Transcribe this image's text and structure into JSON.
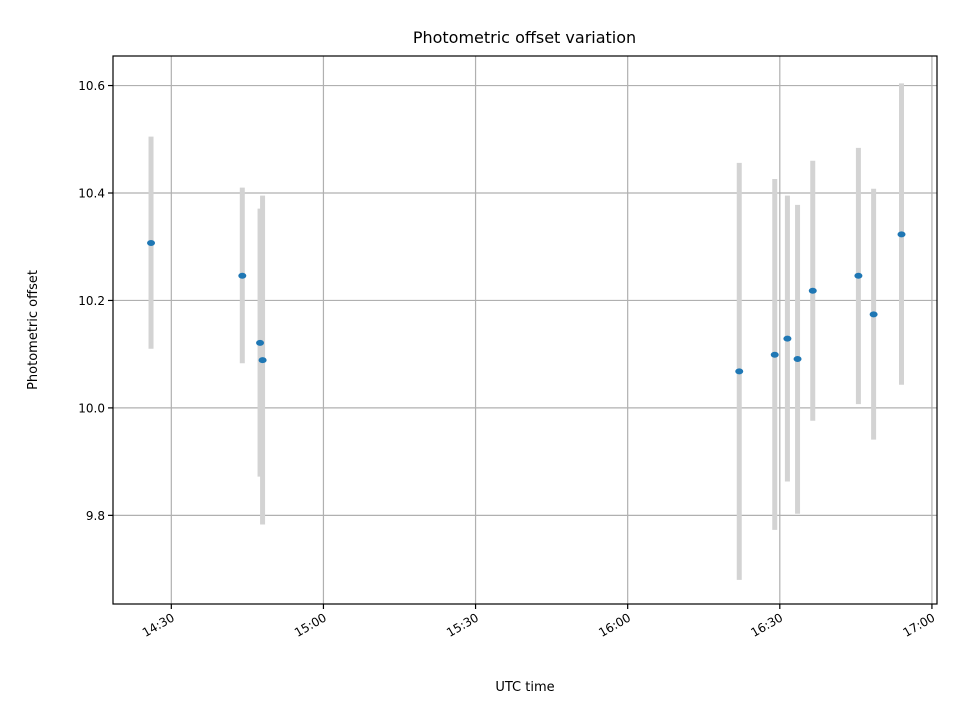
{
  "chart_data": {
    "type": "scatter",
    "title": "Photometric offset variation",
    "xlabel": "UTC time",
    "ylabel": "Photometric offset",
    "x_ticks": [
      "14:30",
      "15:00",
      "15:30",
      "16:00",
      "16:30",
      "17:00"
    ],
    "y_ticks": [
      "9.8",
      "10.0",
      "10.2",
      "10.4",
      "10.6"
    ],
    "xlim": [
      "14:18:30",
      "17:01:00"
    ],
    "ylim": [
      9.635,
      10.655
    ],
    "grid": true,
    "colors": {
      "marker": "#1f77b4",
      "errorbar": "#d3d3d3",
      "grid": "#b0b0b0"
    },
    "points": [
      {
        "time": "14:26:00",
        "y": 10.307,
        "ylo": 10.11,
        "yhi": 10.505
      },
      {
        "time": "14:44:00",
        "y": 10.246,
        "ylo": 10.083,
        "yhi": 10.41
      },
      {
        "time": "14:47:30",
        "y": 10.121,
        "ylo": 9.872,
        "yhi": 10.371
      },
      {
        "time": "14:48:00",
        "y": 10.089,
        "ylo": 9.783,
        "yhi": 10.395
      },
      {
        "time": "16:22:00",
        "y": 10.068,
        "ylo": 9.68,
        "yhi": 10.456
      },
      {
        "time": "16:29:00",
        "y": 10.099,
        "ylo": 9.773,
        "yhi": 10.426
      },
      {
        "time": "16:31:30",
        "y": 10.129,
        "ylo": 9.863,
        "yhi": 10.395
      },
      {
        "time": "16:33:30",
        "y": 10.091,
        "ylo": 9.803,
        "yhi": 10.378
      },
      {
        "time": "16:36:30",
        "y": 10.218,
        "ylo": 9.976,
        "yhi": 10.46
      },
      {
        "time": "16:45:30",
        "y": 10.246,
        "ylo": 10.007,
        "yhi": 10.484
      },
      {
        "time": "16:48:30",
        "y": 10.174,
        "ylo": 9.941,
        "yhi": 10.408
      },
      {
        "time": "16:54:00",
        "y": 10.323,
        "ylo": 10.043,
        "yhi": 10.604
      }
    ]
  }
}
